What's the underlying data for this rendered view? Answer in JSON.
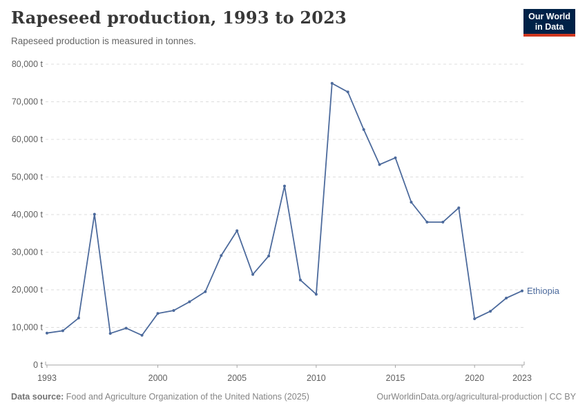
{
  "header": {
    "title": "Rapeseed production, 1993 to 2023",
    "subtitle": "Rapeseed production is measured in tonnes.",
    "logo": {
      "line1": "Our World",
      "line2": "in Data",
      "bg_color": "#002147",
      "stripe_color": "#d0371f"
    }
  },
  "chart_data": {
    "type": "line",
    "title": "Rapeseed production, 1993 to 2023",
    "unit": "t",
    "x": [
      1993,
      1994,
      1995,
      1996,
      1997,
      1998,
      1999,
      2000,
      2001,
      2002,
      2003,
      2004,
      2005,
      2006,
      2007,
      2008,
      2009,
      2010,
      2011,
      2012,
      2013,
      2014,
      2015,
      2016,
      2017,
      2018,
      2019,
      2020,
      2021,
      2022,
      2023
    ],
    "series": [
      {
        "name": "Ethiopia",
        "color": "#4C6A9C",
        "values": [
          8500,
          9100,
          12500,
          40100,
          8400,
          9800,
          7900,
          13700,
          14500,
          16800,
          19500,
          29100,
          35700,
          24100,
          29000,
          47600,
          22600,
          18800,
          74900,
          72600,
          62600,
          53300,
          55100,
          43300,
          38000,
          38000,
          41800,
          12300,
          14300,
          17800,
          19700
        ]
      }
    ],
    "xlabel": "",
    "ylabel": "",
    "ylim": [
      0,
      80000
    ],
    "ytick_interval": 10000,
    "ytick_suffix": " t",
    "xticks": [
      1993,
      2000,
      2005,
      2010,
      2015,
      2020,
      2023
    ],
    "grid": "horizontal-dashed",
    "legend_position": "end-of-line-label",
    "entity_label": "Ethiopia"
  },
  "footer": {
    "datasource_label": "Data source:",
    "datasource_text": "Food and Agriculture Organization of the United Nations (2025)",
    "right_text": "OurWorldinData.org/agricultural-production | CC BY"
  },
  "colors": {
    "line": "#4C6A9C",
    "grid": "#dcdcdc",
    "axis": "#a5a5a5",
    "tick_label": "#5f5f5f",
    "title": "#383838",
    "subtitle": "#666666",
    "footer": "#858585"
  }
}
